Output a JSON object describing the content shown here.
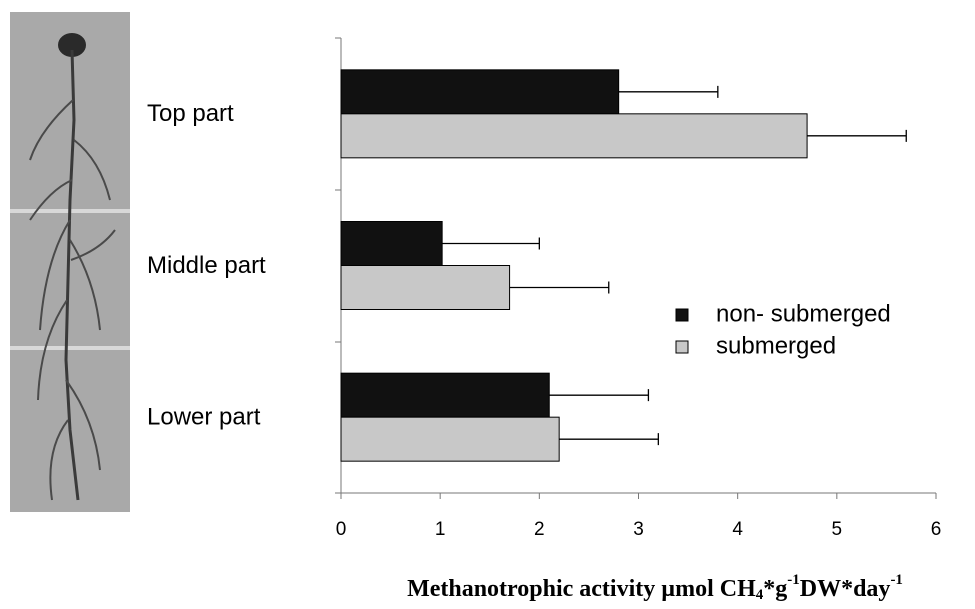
{
  "chart_data": {
    "type": "hbar",
    "categories": [
      "Top part",
      "Middle part",
      "Lower part"
    ],
    "series": [
      {
        "name": "non- submerged",
        "color": "#111111",
        "values": [
          2.8,
          1.02,
          2.1
        ],
        "errors": [
          1.0,
          0.98,
          1.0
        ]
      },
      {
        "name": "submerged",
        "color": "#c8c8c8",
        "values": [
          4.7,
          1.7,
          2.2
        ],
        "errors": [
          1.0,
          1.0,
          1.0
        ]
      }
    ],
    "xlim": [
      0,
      6
    ],
    "xticks": [
      0,
      1,
      2,
      3,
      4,
      5,
      6
    ],
    "x_label": [
      "Methanotrophic activity µmol CH",
      "4",
      "*g",
      "-1",
      "DW*day",
      "-1"
    ],
    "legend": "right"
  }
}
